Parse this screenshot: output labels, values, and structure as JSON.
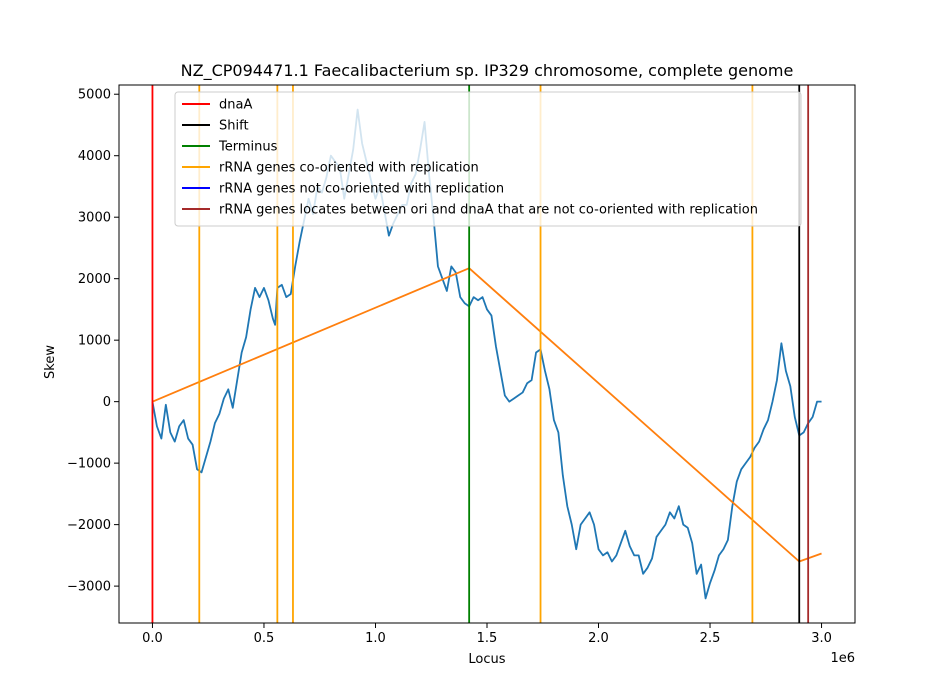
{
  "chart_data": {
    "type": "line",
    "title": "NZ_CP094471.1 Faecalibacterium sp. IP329 chromosome, complete genome",
    "xlabel": "Locus",
    "ylabel": "Skew",
    "x_offset_text": "1e6",
    "xlim": [
      -0.15,
      3.15
    ],
    "ylim": [
      -3600,
      5150
    ],
    "x_ticks": [
      0.0,
      0.5,
      1.0,
      1.5,
      2.0,
      2.5,
      3.0
    ],
    "x_tick_labels": [
      "0.0",
      "0.5",
      "1.0",
      "1.5",
      "2.0",
      "2.5",
      "3.0"
    ],
    "y_ticks": [
      -3000,
      -2000,
      -1000,
      0,
      1000,
      2000,
      3000,
      4000,
      5000
    ],
    "y_tick_labels": [
      "−3000",
      "−2000",
      "−1000",
      "0",
      "1000",
      "2000",
      "3000",
      "4000",
      "5000"
    ],
    "grid": false,
    "legend_position": "top-right",
    "legend": [
      {
        "label": "dnaA",
        "color": "#ff0000"
      },
      {
        "label": "Shift",
        "color": "#000000"
      },
      {
        "label": "Terminus",
        "color": "#008000"
      },
      {
        "label": "rRNA genes co-oriented with replication",
        "color": "#ffa500"
      },
      {
        "label": "rRNA genes not co-oriented with replication",
        "color": "#0000ff"
      },
      {
        "label": "rRNA genes locates between ori and dnaA that are not co-oriented with replication",
        "color": "#a52a2a"
      }
    ],
    "vertical_lines": [
      {
        "x": 0.0,
        "kind": "dnaA",
        "color": "#ff0000"
      },
      {
        "x": 2.9,
        "kind": "Shift",
        "color": "#000000"
      },
      {
        "x": 1.42,
        "kind": "Terminus",
        "color": "#008000"
      },
      {
        "x": 0.21,
        "kind": "rRNA genes co-oriented with replication",
        "color": "#ffa500"
      },
      {
        "x": 0.56,
        "kind": "rRNA genes co-oriented with replication",
        "color": "#ffa500"
      },
      {
        "x": 0.63,
        "kind": "rRNA genes co-oriented with replication",
        "color": "#ffa500"
      },
      {
        "x": 1.74,
        "kind": "rRNA genes co-oriented with replication",
        "color": "#ffa500"
      },
      {
        "x": 2.69,
        "kind": "rRNA genes co-oriented with replication",
        "color": "#ffa500"
      },
      {
        "x": 2.94,
        "kind": "rRNA genes locates between ori and dnaA that are not co-oriented with replication",
        "color": "#a52a2a"
      }
    ],
    "series": [
      {
        "color": "#1f77b4",
        "x": [
          0.0,
          0.02,
          0.04,
          0.06,
          0.08,
          0.1,
          0.12,
          0.14,
          0.16,
          0.18,
          0.2,
          0.22,
          0.24,
          0.26,
          0.28,
          0.3,
          0.32,
          0.34,
          0.36,
          0.38,
          0.4,
          0.42,
          0.44,
          0.46,
          0.48,
          0.5,
          0.52,
          0.54,
          0.55,
          0.56,
          0.58,
          0.6,
          0.62,
          0.64,
          0.66,
          0.68,
          0.7,
          0.72,
          0.74,
          0.76,
          0.78,
          0.8,
          0.82,
          0.84,
          0.86,
          0.88,
          0.9,
          0.92,
          0.94,
          0.96,
          0.98,
          1.0,
          1.02,
          1.04,
          1.06,
          1.08,
          1.1,
          1.12,
          1.14,
          1.16,
          1.18,
          1.2,
          1.22,
          1.24,
          1.26,
          1.28,
          1.3,
          1.32,
          1.34,
          1.36,
          1.38,
          1.4,
          1.42,
          1.44,
          1.46,
          1.48,
          1.5,
          1.52,
          1.54,
          1.56,
          1.58,
          1.6,
          1.62,
          1.64,
          1.66,
          1.68,
          1.7,
          1.72,
          1.74,
          1.76,
          1.78,
          1.8,
          1.82,
          1.84,
          1.86,
          1.88,
          1.9,
          1.92,
          1.94,
          1.96,
          1.98,
          2.0,
          2.02,
          2.04,
          2.06,
          2.08,
          2.1,
          2.12,
          2.14,
          2.16,
          2.18,
          2.2,
          2.22,
          2.24,
          2.26,
          2.28,
          2.3,
          2.32,
          2.34,
          2.36,
          2.38,
          2.4,
          2.42,
          2.44,
          2.46,
          2.48,
          2.5,
          2.52,
          2.54,
          2.56,
          2.58,
          2.6,
          2.62,
          2.64,
          2.66,
          2.68,
          2.7,
          2.72,
          2.74,
          2.76,
          2.78,
          2.8,
          2.82,
          2.84,
          2.86,
          2.88,
          2.9,
          2.92,
          2.94,
          2.96,
          2.98,
          3.0
        ],
        "values": [
          0,
          -400,
          -600,
          -50,
          -500,
          -650,
          -400,
          -300,
          -600,
          -700,
          -1100,
          -1150,
          -900,
          -650,
          -350,
          -200,
          50,
          200,
          -100,
          350,
          800,
          1050,
          1500,
          1850,
          1700,
          1850,
          1650,
          1350,
          1250,
          1850,
          1900,
          1700,
          1750,
          2200,
          2600,
          2950,
          3300,
          3050,
          3500,
          3400,
          3650,
          4000,
          3900,
          3800,
          3300,
          3700,
          4100,
          4750,
          4200,
          3900,
          3600,
          3300,
          3500,
          3100,
          2700,
          2900,
          3050,
          3200,
          3200,
          3550,
          3700,
          4100,
          4550,
          3700,
          3000,
          2200,
          2000,
          1800,
          2200,
          2100,
          1700,
          1600,
          1550,
          1700,
          1650,
          1700,
          1500,
          1400,
          900,
          500,
          100,
          0,
          50,
          100,
          150,
          300,
          350,
          800,
          850,
          500,
          200,
          -300,
          -500,
          -1200,
          -1700,
          -2000,
          -2400,
          -2000,
          -1900,
          -1800,
          -2000,
          -2400,
          -2500,
          -2450,
          -2600,
          -2500,
          -2300,
          -2100,
          -2350,
          -2500,
          -2500,
          -2800,
          -2700,
          -2550,
          -2200,
          -2100,
          -2000,
          -1800,
          -1900,
          -1700,
          -2000,
          -2050,
          -2300,
          -2800,
          -2650,
          -3200,
          -2950,
          -2750,
          -2500,
          -2400,
          -2250,
          -1700,
          -1300,
          -1100,
          -1000,
          -900,
          -750,
          -650,
          -450,
          -300,
          0,
          350,
          950,
          500,
          250,
          -250,
          -550,
          -500,
          -350,
          -250,
          0,
          0
        ]
      },
      {
        "color": "#ff7f0e",
        "x": [
          0.0,
          1.42,
          2.9,
          3.0
        ],
        "values": [
          0,
          2170,
          -2600,
          -2470
        ]
      }
    ]
  }
}
